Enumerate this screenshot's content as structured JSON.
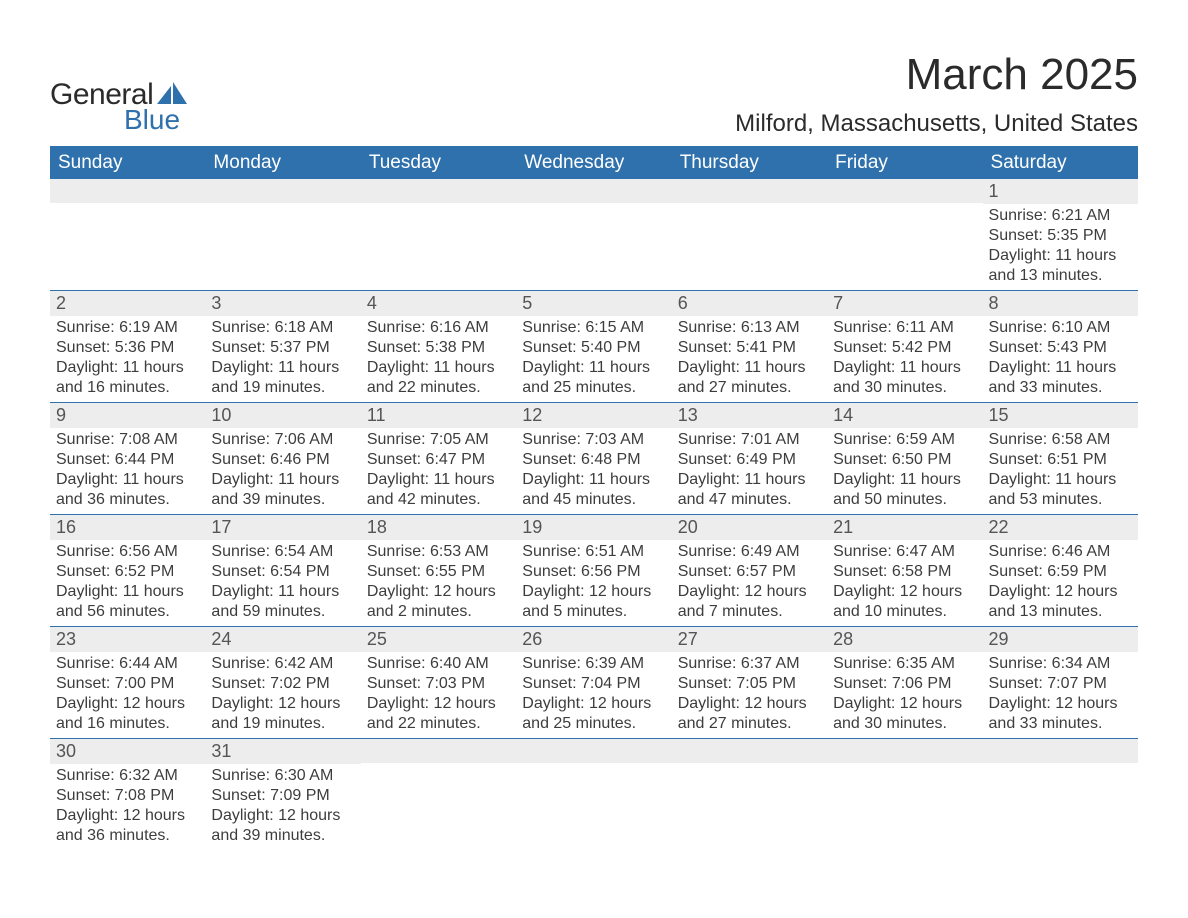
{
  "logo": {
    "text_general": "General",
    "text_blue": "Blue",
    "shape_color": "#2f71ad"
  },
  "title": "March 2025",
  "location": "Milford, Massachusetts, United States",
  "colors": {
    "header_bg": "#2f71ad",
    "header_text": "#ffffff",
    "daynum_bg": "#ededed",
    "border": "#2f71ad",
    "body_text": "#3d3d3d"
  },
  "fonts": {
    "title_size_pt": 33,
    "location_size_pt": 18,
    "header_size_pt": 14,
    "body_size_pt": 12
  },
  "day_headers": [
    "Sunday",
    "Monday",
    "Tuesday",
    "Wednesday",
    "Thursday",
    "Friday",
    "Saturday"
  ],
  "weeks": [
    [
      {
        "n": "",
        "lines": [
          "",
          "",
          "",
          ""
        ]
      },
      {
        "n": "",
        "lines": [
          "",
          "",
          "",
          ""
        ]
      },
      {
        "n": "",
        "lines": [
          "",
          "",
          "",
          ""
        ]
      },
      {
        "n": "",
        "lines": [
          "",
          "",
          "",
          ""
        ]
      },
      {
        "n": "",
        "lines": [
          "",
          "",
          "",
          ""
        ]
      },
      {
        "n": "",
        "lines": [
          "",
          "",
          "",
          ""
        ]
      },
      {
        "n": "1",
        "lines": [
          "Sunrise: 6:21 AM",
          "Sunset: 5:35 PM",
          "Daylight: 11 hours",
          "and 13 minutes."
        ]
      }
    ],
    [
      {
        "n": "2",
        "lines": [
          "Sunrise: 6:19 AM",
          "Sunset: 5:36 PM",
          "Daylight: 11 hours",
          "and 16 minutes."
        ]
      },
      {
        "n": "3",
        "lines": [
          "Sunrise: 6:18 AM",
          "Sunset: 5:37 PM",
          "Daylight: 11 hours",
          "and 19 minutes."
        ]
      },
      {
        "n": "4",
        "lines": [
          "Sunrise: 6:16 AM",
          "Sunset: 5:38 PM",
          "Daylight: 11 hours",
          "and 22 minutes."
        ]
      },
      {
        "n": "5",
        "lines": [
          "Sunrise: 6:15 AM",
          "Sunset: 5:40 PM",
          "Daylight: 11 hours",
          "and 25 minutes."
        ]
      },
      {
        "n": "6",
        "lines": [
          "Sunrise: 6:13 AM",
          "Sunset: 5:41 PM",
          "Daylight: 11 hours",
          "and 27 minutes."
        ]
      },
      {
        "n": "7",
        "lines": [
          "Sunrise: 6:11 AM",
          "Sunset: 5:42 PM",
          "Daylight: 11 hours",
          "and 30 minutes."
        ]
      },
      {
        "n": "8",
        "lines": [
          "Sunrise: 6:10 AM",
          "Sunset: 5:43 PM",
          "Daylight: 11 hours",
          "and 33 minutes."
        ]
      }
    ],
    [
      {
        "n": "9",
        "lines": [
          "Sunrise: 7:08 AM",
          "Sunset: 6:44 PM",
          "Daylight: 11 hours",
          "and 36 minutes."
        ]
      },
      {
        "n": "10",
        "lines": [
          "Sunrise: 7:06 AM",
          "Sunset: 6:46 PM",
          "Daylight: 11 hours",
          "and 39 minutes."
        ]
      },
      {
        "n": "11",
        "lines": [
          "Sunrise: 7:05 AM",
          "Sunset: 6:47 PM",
          "Daylight: 11 hours",
          "and 42 minutes."
        ]
      },
      {
        "n": "12",
        "lines": [
          "Sunrise: 7:03 AM",
          "Sunset: 6:48 PM",
          "Daylight: 11 hours",
          "and 45 minutes."
        ]
      },
      {
        "n": "13",
        "lines": [
          "Sunrise: 7:01 AM",
          "Sunset: 6:49 PM",
          "Daylight: 11 hours",
          "and 47 minutes."
        ]
      },
      {
        "n": "14",
        "lines": [
          "Sunrise: 6:59 AM",
          "Sunset: 6:50 PM",
          "Daylight: 11 hours",
          "and 50 minutes."
        ]
      },
      {
        "n": "15",
        "lines": [
          "Sunrise: 6:58 AM",
          "Sunset: 6:51 PM",
          "Daylight: 11 hours",
          "and 53 minutes."
        ]
      }
    ],
    [
      {
        "n": "16",
        "lines": [
          "Sunrise: 6:56 AM",
          "Sunset: 6:52 PM",
          "Daylight: 11 hours",
          "and 56 minutes."
        ]
      },
      {
        "n": "17",
        "lines": [
          "Sunrise: 6:54 AM",
          "Sunset: 6:54 PM",
          "Daylight: 11 hours",
          "and 59 minutes."
        ]
      },
      {
        "n": "18",
        "lines": [
          "Sunrise: 6:53 AM",
          "Sunset: 6:55 PM",
          "Daylight: 12 hours",
          "and 2 minutes."
        ]
      },
      {
        "n": "19",
        "lines": [
          "Sunrise: 6:51 AM",
          "Sunset: 6:56 PM",
          "Daylight: 12 hours",
          "and 5 minutes."
        ]
      },
      {
        "n": "20",
        "lines": [
          "Sunrise: 6:49 AM",
          "Sunset: 6:57 PM",
          "Daylight: 12 hours",
          "and 7 minutes."
        ]
      },
      {
        "n": "21",
        "lines": [
          "Sunrise: 6:47 AM",
          "Sunset: 6:58 PM",
          "Daylight: 12 hours",
          "and 10 minutes."
        ]
      },
      {
        "n": "22",
        "lines": [
          "Sunrise: 6:46 AM",
          "Sunset: 6:59 PM",
          "Daylight: 12 hours",
          "and 13 minutes."
        ]
      }
    ],
    [
      {
        "n": "23",
        "lines": [
          "Sunrise: 6:44 AM",
          "Sunset: 7:00 PM",
          "Daylight: 12 hours",
          "and 16 minutes."
        ]
      },
      {
        "n": "24",
        "lines": [
          "Sunrise: 6:42 AM",
          "Sunset: 7:02 PM",
          "Daylight: 12 hours",
          "and 19 minutes."
        ]
      },
      {
        "n": "25",
        "lines": [
          "Sunrise: 6:40 AM",
          "Sunset: 7:03 PM",
          "Daylight: 12 hours",
          "and 22 minutes."
        ]
      },
      {
        "n": "26",
        "lines": [
          "Sunrise: 6:39 AM",
          "Sunset: 7:04 PM",
          "Daylight: 12 hours",
          "and 25 minutes."
        ]
      },
      {
        "n": "27",
        "lines": [
          "Sunrise: 6:37 AM",
          "Sunset: 7:05 PM",
          "Daylight: 12 hours",
          "and 27 minutes."
        ]
      },
      {
        "n": "28",
        "lines": [
          "Sunrise: 6:35 AM",
          "Sunset: 7:06 PM",
          "Daylight: 12 hours",
          "and 30 minutes."
        ]
      },
      {
        "n": "29",
        "lines": [
          "Sunrise: 6:34 AM",
          "Sunset: 7:07 PM",
          "Daylight: 12 hours",
          "and 33 minutes."
        ]
      }
    ],
    [
      {
        "n": "30",
        "lines": [
          "Sunrise: 6:32 AM",
          "Sunset: 7:08 PM",
          "Daylight: 12 hours",
          "and 36 minutes."
        ]
      },
      {
        "n": "31",
        "lines": [
          "Sunrise: 6:30 AM",
          "Sunset: 7:09 PM",
          "Daylight: 12 hours",
          "and 39 minutes."
        ]
      },
      {
        "n": "",
        "lines": [
          "",
          "",
          "",
          ""
        ]
      },
      {
        "n": "",
        "lines": [
          "",
          "",
          "",
          ""
        ]
      },
      {
        "n": "",
        "lines": [
          "",
          "",
          "",
          ""
        ]
      },
      {
        "n": "",
        "lines": [
          "",
          "",
          "",
          ""
        ]
      },
      {
        "n": "",
        "lines": [
          "",
          "",
          "",
          ""
        ]
      }
    ]
  ]
}
